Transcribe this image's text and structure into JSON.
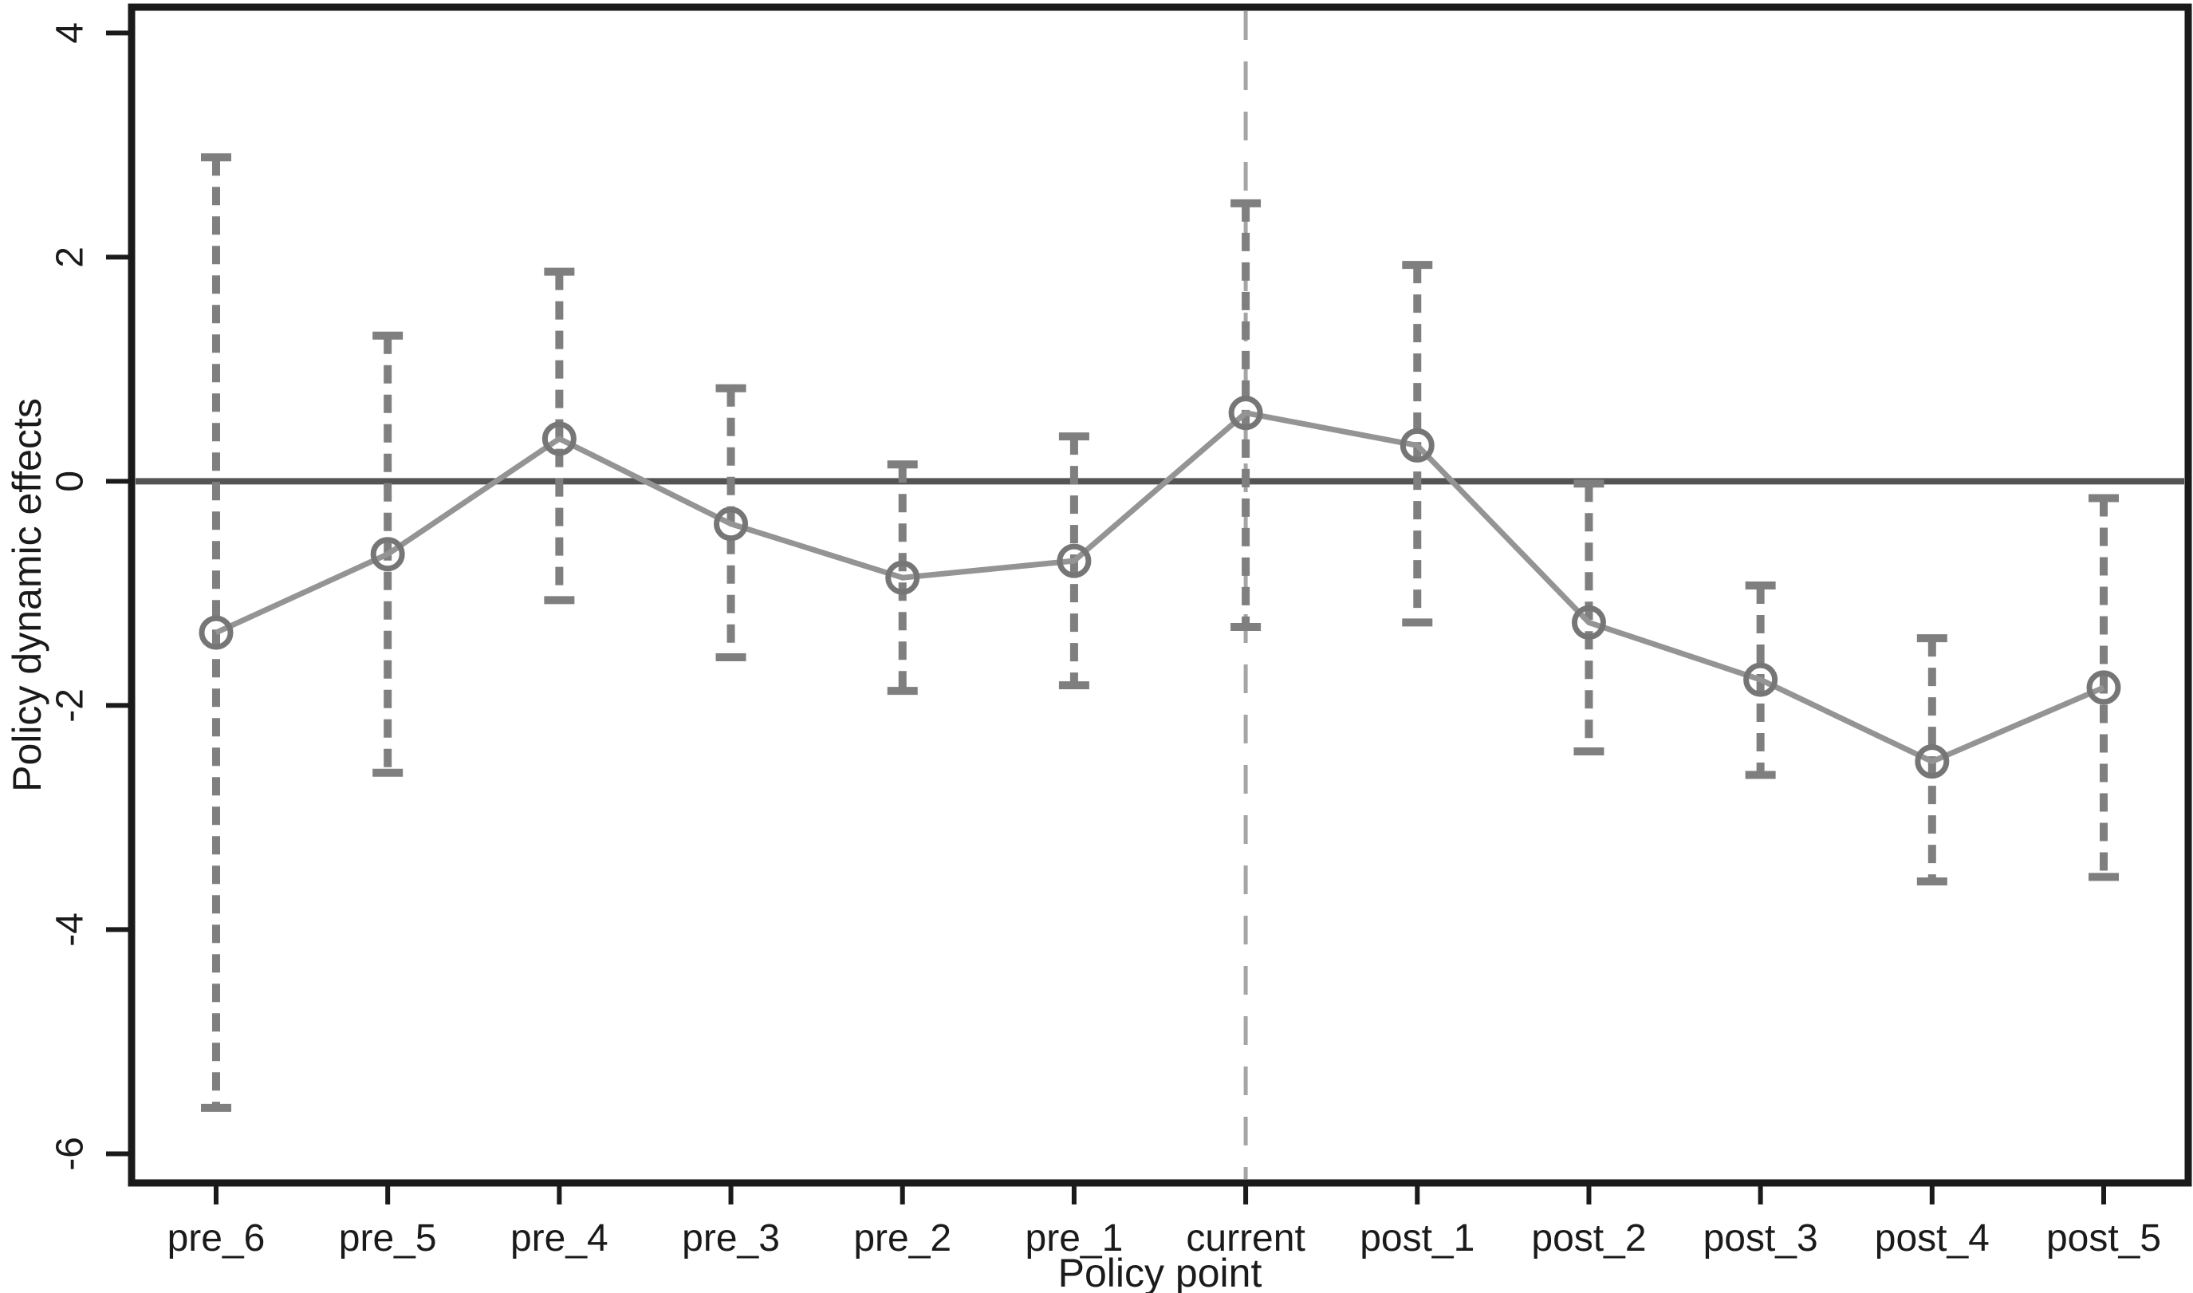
{
  "chart_data": {
    "type": "line",
    "title": "",
    "xlabel": "Policy point",
    "ylabel": "Policy dynamic effects",
    "categories": [
      "pre_6",
      "pre_5",
      "pre_4",
      "pre_3",
      "pre_2",
      "pre_1",
      "current",
      "post_1",
      "post_2",
      "post_3",
      "post_4",
      "post_5"
    ],
    "series": [
      {
        "name": "estimate",
        "values": [
          -1.35,
          -0.65,
          0.38,
          -0.38,
          -0.86,
          -0.71,
          0.61,
          0.32,
          -1.26,
          -1.77,
          -2.5,
          -1.84
        ]
      },
      {
        "name": "ci_lower",
        "values": [
          -5.59,
          -2.6,
          -1.06,
          -1.57,
          -1.87,
          -1.82,
          -1.3,
          -1.26,
          -2.41,
          -2.62,
          -3.57,
          -3.53
        ]
      },
      {
        "name": "ci_upper",
        "values": [
          2.89,
          1.3,
          1.87,
          0.83,
          0.15,
          0.4,
          2.48,
          1.93,
          -0.02,
          -0.93,
          -1.4,
          -0.15
        ]
      }
    ],
    "y_ticks": [
      4,
      2,
      0,
      -2,
      -4,
      -6
    ],
    "y_tick_labels": [
      "4",
      "2",
      "0",
      "-2",
      "-4",
      "-6"
    ],
    "ylim": [
      -6.26,
      4.23
    ],
    "marker": "open-circle",
    "error_bar_style": "dashed-with-caps",
    "grid": false,
    "legend": false,
    "reference_lines": {
      "horizontal_at": 0,
      "vertical_at_category": "current"
    },
    "colors": {
      "background": "#ffffff",
      "frame": "#1a1a1a",
      "text": "#1a1a1a",
      "series_line": "#949494",
      "marker": "#767676",
      "error_bar": "#7f7f7f",
      "zero_line": "#545454",
      "reference_line": "#a5a5a5"
    }
  }
}
